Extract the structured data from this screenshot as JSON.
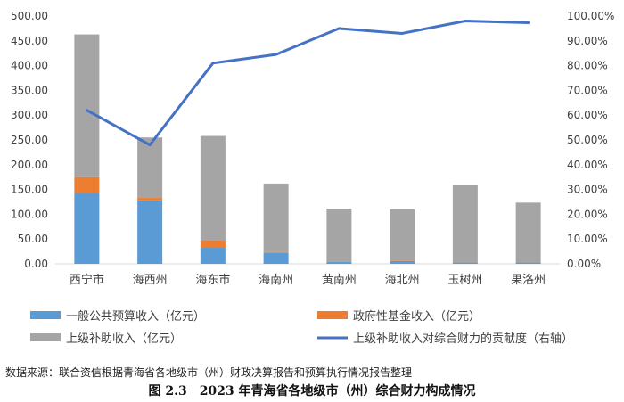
{
  "chart_data": {
    "type": "bar",
    "stacked": true,
    "categories": [
      "西宁市",
      "海西州",
      "海东市",
      "海南州",
      "黄南州",
      "海北州",
      "玉树州",
      "果洛州"
    ],
    "series": [
      {
        "name": "一般公共预算收入（亿元）",
        "color": "#5B9BD5",
        "values": [
          143,
          128,
          34,
          22,
          4,
          6,
          3,
          3
        ]
      },
      {
        "name": "政府性基金收入（亿元）",
        "color": "#ED7D31",
        "values": [
          32,
          5,
          14,
          2,
          0.5,
          1,
          0.5,
          0.5
        ]
      },
      {
        "name": "上级补助收入（亿元）",
        "color": "#A5A5A5",
        "values": [
          288,
          122,
          210,
          138,
          107,
          103,
          155,
          120
        ]
      }
    ],
    "line_series": {
      "name": "上级补助收入对综合财力的贡献度（右轴）",
      "color": "#4472C4",
      "values": [
        62,
        48,
        81,
        84.5,
        95,
        93,
        98,
        97.3
      ]
    },
    "ylim": [
      0,
      500
    ],
    "y2lim": [
      0,
      100
    ],
    "yticks": [
      "0.00",
      "50.00",
      "100.00",
      "150.00",
      "200.00",
      "250.00",
      "300.00",
      "350.00",
      "400.00",
      "450.00",
      "500.00"
    ],
    "y2ticks": [
      "0.00%",
      "10.00%",
      "20.00%",
      "30.00%",
      "40.00%",
      "50.00%",
      "60.00%",
      "70.00%",
      "80.00%",
      "90.00%",
      "100.00%"
    ],
    "legend_position": "bottom"
  },
  "source_note": "数据来源：联合资信根据青海省各地级市（州）财政决算报告和预算执行情况报告整理",
  "caption_number": "图 2.3",
  "caption_title": "2023 年青海省各地级市（州）综合财力构成情况"
}
